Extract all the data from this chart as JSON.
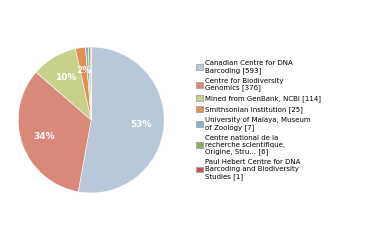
{
  "labels": [
    "Canadian Centre for DNA\nBarcoding [593]",
    "Centre for Biodiversity\nGenomics [376]",
    "Mined from GenBank, NCBI [114]",
    "Smithsonian Institution [25]",
    "University of Malaya, Museum\nof Zoology [7]",
    "Centre national de la\nrecherche scientifique,\nOrigine, Stru... [6]",
    "Paul Hebert Centre for DNA\nBarcoding and Biodiversity\nStudies [1]"
  ],
  "values": [
    593,
    376,
    114,
    25,
    7,
    6,
    1
  ],
  "colors": [
    "#b8c8d8",
    "#d9897a",
    "#c8d18a",
    "#e09050",
    "#8ab0cc",
    "#8aaa60",
    "#c85050"
  ],
  "startangle": 90,
  "figsize": [
    3.8,
    2.4
  ],
  "dpi": 100
}
